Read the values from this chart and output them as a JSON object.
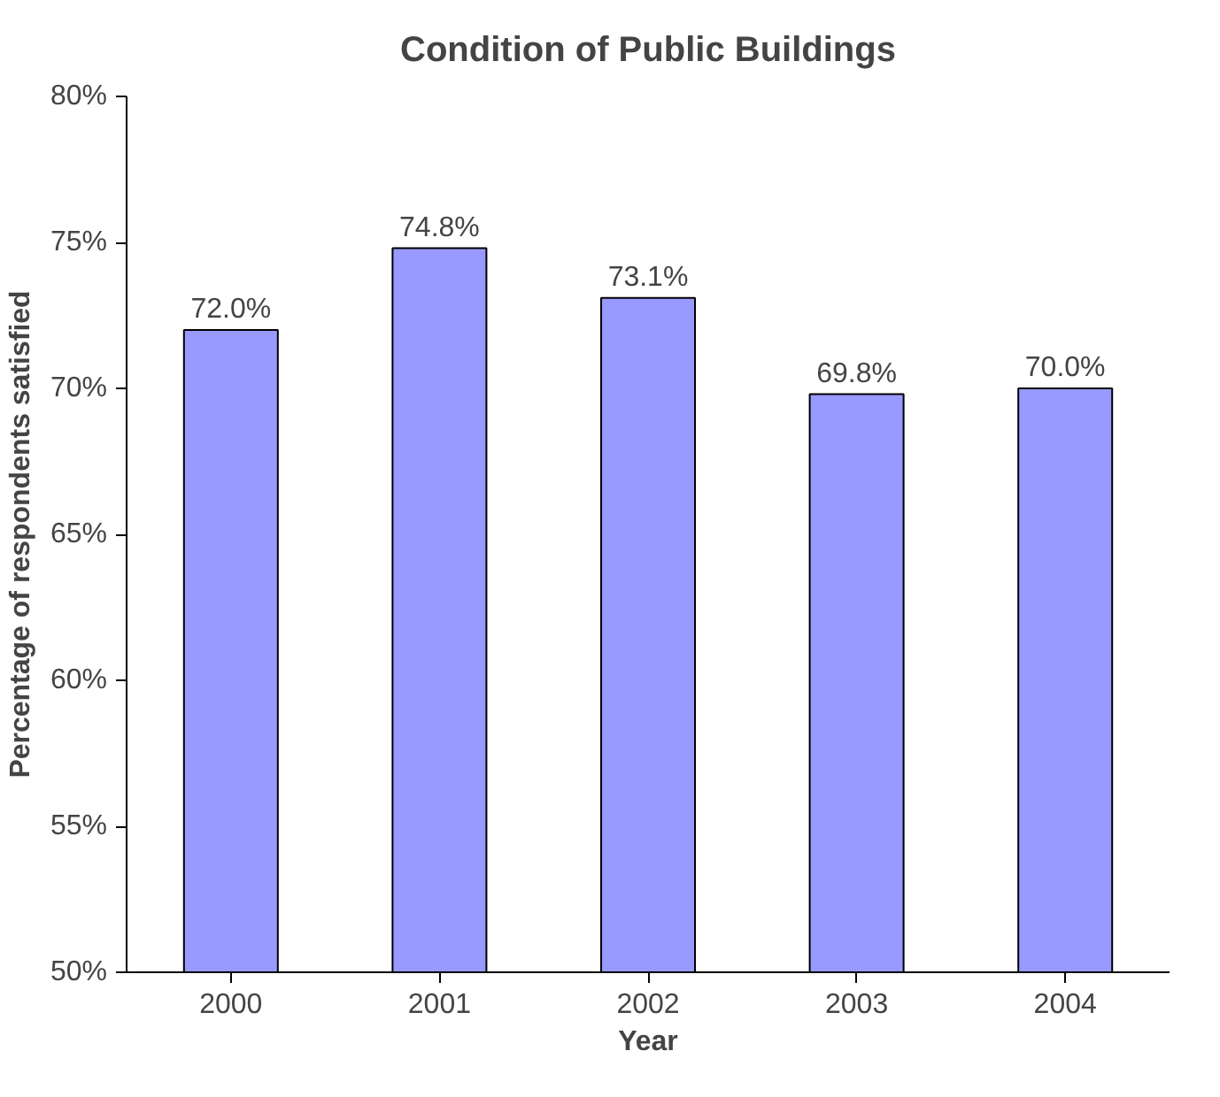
{
  "chart_data": {
    "type": "bar",
    "title": "Condition of Public Buildings",
    "xlabel": "Year",
    "ylabel": "Percentage of respondents satisfied",
    "categories": [
      "2000",
      "2001",
      "2002",
      "2003",
      "2004"
    ],
    "values": [
      72.0,
      74.8,
      73.1,
      69.8,
      70.0
    ],
    "value_labels": [
      "72.0%",
      "74.8%",
      "73.1%",
      "69.8%",
      "70.0%"
    ],
    "color": "#9999ff",
    "ylim": [
      50,
      80
    ],
    "yticks": [
      {
        "value": 50,
        "label": "50%"
      },
      {
        "value": 55,
        "label": "55%"
      },
      {
        "value": 60,
        "label": "60%"
      },
      {
        "value": 65,
        "label": "65%"
      },
      {
        "value": 70,
        "label": "70%"
      },
      {
        "value": 75,
        "label": "75%"
      },
      {
        "value": 80,
        "label": "80%"
      }
    ],
    "grid": false
  }
}
